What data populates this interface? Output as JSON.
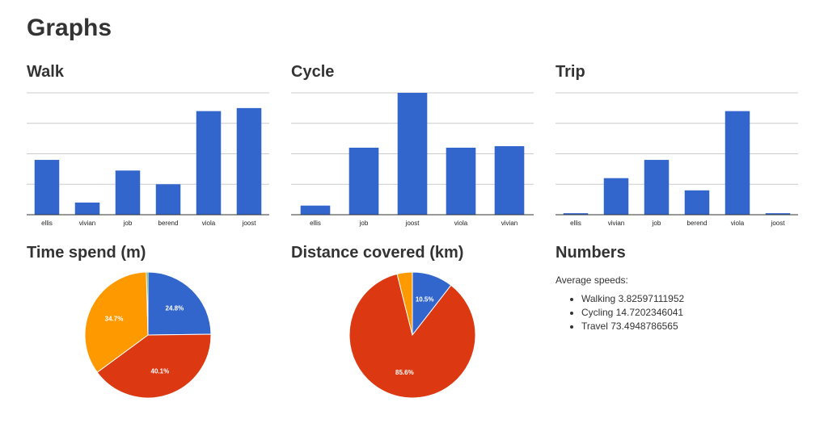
{
  "page": {
    "title": "Graphs"
  },
  "charts": {
    "walk": {
      "title": "Walk"
    },
    "cycle": {
      "title": "Cycle"
    },
    "trip": {
      "title": "Trip"
    },
    "time": {
      "title": "Time spend (m)"
    },
    "distance": {
      "title": "Distance covered (km)"
    }
  },
  "numbers": {
    "title": "Numbers",
    "intro": "Average speeds:",
    "items": [
      "Walking 3.82597111952",
      "Cycling 14.7202346041",
      "Travel 73.4948786565"
    ]
  },
  "chart_data": [
    {
      "id": "walk",
      "type": "bar",
      "title": "Walk",
      "categories": [
        "ellis",
        "vivian",
        "job",
        "berend",
        "viola",
        "joost"
      ],
      "values": [
        1.8,
        0.4,
        1.45,
        1.0,
        3.4,
        3.5
      ],
      "ylim": [
        0,
        4
      ],
      "grid": true,
      "color": "#3366cc"
    },
    {
      "id": "cycle",
      "type": "bar",
      "title": "Cycle",
      "categories": [
        "ellis",
        "job",
        "joost",
        "viola",
        "vivian"
      ],
      "values": [
        0.3,
        2.2,
        4.0,
        2.2,
        2.25
      ],
      "ylim": [
        0,
        4
      ],
      "grid": true,
      "color": "#3366cc"
    },
    {
      "id": "trip",
      "type": "bar",
      "title": "Trip",
      "categories": [
        "ellis",
        "vivian",
        "job",
        "berend",
        "viola",
        "joost"
      ],
      "values": [
        0.05,
        1.2,
        1.8,
        0.8,
        3.4,
        0.05
      ],
      "ylim": [
        0,
        4
      ],
      "grid": true,
      "color": "#3366cc"
    },
    {
      "id": "time",
      "type": "pie",
      "title": "Time spend (m)",
      "slices": [
        {
          "value": 24.8,
          "label": "24.8%",
          "color": "#3366cc"
        },
        {
          "value": 40.1,
          "label": "40.1%",
          "color": "#dc3912"
        },
        {
          "value": 34.7,
          "label": "34.7%",
          "color": "#ff9900"
        },
        {
          "value": 0.4,
          "label": "",
          "color": "#109618"
        }
      ]
    },
    {
      "id": "distance",
      "type": "pie",
      "title": "Distance covered (km)",
      "slices": [
        {
          "value": 10.5,
          "label": "10.5%",
          "color": "#3366cc"
        },
        {
          "value": 85.6,
          "label": "85.6%",
          "color": "#dc3912"
        },
        {
          "value": 3.9,
          "label": "",
          "color": "#ff9900"
        }
      ]
    }
  ]
}
